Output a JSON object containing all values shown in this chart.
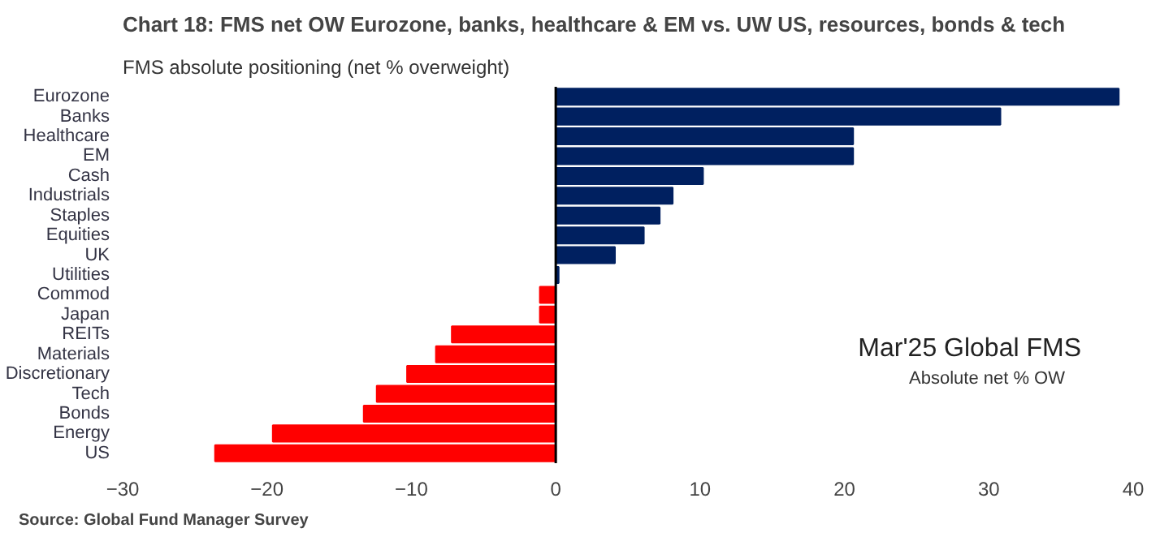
{
  "chart_data": {
    "type": "bar",
    "orientation": "horizontal",
    "title": "Chart 18: FMS net OW Eurozone, banks, healthcare & EM vs. UW US, resources, bonds & tech",
    "subtitle": "FMS absolute positioning (net % overweight)",
    "categories": [
      "Eurozone",
      "Banks",
      "Healthcare",
      "EM",
      "Cash",
      "Industrials",
      "Staples",
      "Equities",
      "UK",
      "Utilities",
      "Commod",
      "Japan",
      "REITs",
      "Materials",
      "Discretionary",
      "Tech",
      "Bonds",
      "Energy",
      "US"
    ],
    "values": [
      39.0,
      30.8,
      20.6,
      20.6,
      10.2,
      8.1,
      7.2,
      6.1,
      4.1,
      0.2,
      -1.1,
      -1.1,
      -7.2,
      -8.3,
      -10.3,
      -12.4,
      -13.3,
      -19.6,
      -23.6
    ],
    "colors": [
      "#002060",
      "#002060",
      "#002060",
      "#002060",
      "#002060",
      "#002060",
      "#002060",
      "#002060",
      "#002060",
      "#002060",
      "#ff0000",
      "#ff0000",
      "#ff0000",
      "#ff0000",
      "#ff0000",
      "#ff0000",
      "#ff0000",
      "#ff0000",
      "#ff0000"
    ],
    "xlim": [
      -30,
      40
    ],
    "xticks": [
      -30,
      -20,
      -10,
      0,
      10,
      20,
      30,
      40
    ],
    "grid": false,
    "ref_lines": [
      {
        "axis": "x",
        "value": 0,
        "color": "#000000"
      }
    ],
    "annotations": [
      "Mar'25 Global FMS",
      "Absolute net % OW",
      "Source: Global Fund Manager Survey"
    ]
  }
}
